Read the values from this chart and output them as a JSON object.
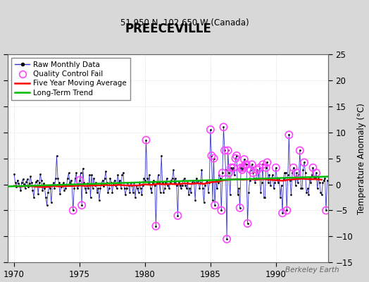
{
  "title": "PREECEVILLE",
  "subtitle": "51.950 N, 102.650 W (Canada)",
  "ylabel": "Temperature Anomaly (°C)",
  "watermark": "Berkeley Earth",
  "xlim": [
    1969.5,
    1994.0
  ],
  "ylim": [
    -15,
    25
  ],
  "yticks": [
    -15,
    -10,
    -5,
    0,
    5,
    10,
    15,
    20,
    25
  ],
  "xticks": [
    1970,
    1975,
    1980,
    1985,
    1990
  ],
  "bg_color": "#d8d8d8",
  "plot_bg_color": "#ffffff",
  "raw_color": "#3333cc",
  "raw_marker_color": "#000000",
  "qc_color": "#ff44ff",
  "moving_avg_color": "#ff0000",
  "trend_color": "#00bb00",
  "raw_data": [
    [
      1970.0,
      2.0
    ],
    [
      1970.083,
      0.3
    ],
    [
      1970.167,
      -0.5
    ],
    [
      1970.25,
      0.8
    ],
    [
      1970.333,
      0.2
    ],
    [
      1970.417,
      -0.3
    ],
    [
      1970.5,
      -1.2
    ],
    [
      1970.583,
      0.4
    ],
    [
      1970.667,
      1.0
    ],
    [
      1970.75,
      0.1
    ],
    [
      1970.833,
      -0.8
    ],
    [
      1970.917,
      0.5
    ],
    [
      1971.0,
      1.0
    ],
    [
      1971.083,
      -0.5
    ],
    [
      1971.167,
      0.2
    ],
    [
      1971.25,
      1.5
    ],
    [
      1971.333,
      0.3
    ],
    [
      1971.417,
      -1.2
    ],
    [
      1971.5,
      -2.5
    ],
    [
      1971.583,
      -0.2
    ],
    [
      1971.667,
      0.5
    ],
    [
      1971.75,
      0.8
    ],
    [
      1971.833,
      -1.8
    ],
    [
      1971.917,
      0.3
    ],
    [
      1972.0,
      2.0
    ],
    [
      1972.083,
      0.8
    ],
    [
      1972.167,
      -1.2
    ],
    [
      1972.25,
      0.2
    ],
    [
      1972.333,
      -0.8
    ],
    [
      1972.417,
      -2.5
    ],
    [
      1972.5,
      -4.0
    ],
    [
      1972.583,
      -1.5
    ],
    [
      1972.667,
      -0.3
    ],
    [
      1972.75,
      -0.8
    ],
    [
      1972.833,
      -3.5
    ],
    [
      1972.917,
      -0.2
    ],
    [
      1973.0,
      0.3
    ],
    [
      1973.083,
      -0.8
    ],
    [
      1973.167,
      1.2
    ],
    [
      1973.25,
      5.5
    ],
    [
      1973.333,
      1.2
    ],
    [
      1973.417,
      0.3
    ],
    [
      1973.5,
      -1.8
    ],
    [
      1973.583,
      -0.5
    ],
    [
      1973.667,
      -0.2
    ],
    [
      1973.75,
      0.3
    ],
    [
      1973.833,
      -1.2
    ],
    [
      1973.917,
      -0.8
    ],
    [
      1974.0,
      -0.2
    ],
    [
      1974.083,
      1.2
    ],
    [
      1974.167,
      2.2
    ],
    [
      1974.25,
      0.3
    ],
    [
      1974.333,
      0.8
    ],
    [
      1974.417,
      -0.2
    ],
    [
      1974.5,
      -5.0
    ],
    [
      1974.583,
      -0.8
    ],
    [
      1974.667,
      1.2
    ],
    [
      1974.75,
      2.2
    ],
    [
      1974.833,
      -0.8
    ],
    [
      1974.917,
      -0.2
    ],
    [
      1975.0,
      0.8
    ],
    [
      1975.083,
      2.2
    ],
    [
      1975.167,
      -4.0
    ],
    [
      1975.25,
      3.0
    ],
    [
      1975.333,
      0.3
    ],
    [
      1975.417,
      -0.8
    ],
    [
      1975.5,
      -1.5
    ],
    [
      1975.583,
      0.2
    ],
    [
      1975.667,
      -0.8
    ],
    [
      1975.75,
      1.8
    ],
    [
      1975.833,
      -2.5
    ],
    [
      1975.917,
      1.8
    ],
    [
      1976.0,
      -0.8
    ],
    [
      1976.083,
      1.2
    ],
    [
      1976.167,
      -0.2
    ],
    [
      1976.25,
      0.3
    ],
    [
      1976.333,
      -1.5
    ],
    [
      1976.417,
      -0.8
    ],
    [
      1976.5,
      -3.0
    ],
    [
      1976.583,
      -0.8
    ],
    [
      1976.667,
      0.2
    ],
    [
      1976.75,
      0.8
    ],
    [
      1976.833,
      -0.3
    ],
    [
      1976.917,
      1.2
    ],
    [
      1977.0,
      2.5
    ],
    [
      1977.083,
      0.3
    ],
    [
      1977.167,
      -1.5
    ],
    [
      1977.25,
      -0.8
    ],
    [
      1977.333,
      1.2
    ],
    [
      1977.417,
      0.3
    ],
    [
      1977.5,
      -1.5
    ],
    [
      1977.583,
      0.2
    ],
    [
      1977.667,
      0.8
    ],
    [
      1977.75,
      -0.2
    ],
    [
      1977.833,
      -0.8
    ],
    [
      1977.917,
      1.8
    ],
    [
      1978.0,
      0.3
    ],
    [
      1978.083,
      0.8
    ],
    [
      1978.167,
      -0.8
    ],
    [
      1978.25,
      1.8
    ],
    [
      1978.333,
      2.2
    ],
    [
      1978.417,
      -0.8
    ],
    [
      1978.5,
      -2.0
    ],
    [
      1978.583,
      -0.8
    ],
    [
      1978.667,
      0.3
    ],
    [
      1978.75,
      -0.2
    ],
    [
      1978.833,
      -1.5
    ],
    [
      1978.917,
      0.3
    ],
    [
      1979.0,
      -0.2
    ],
    [
      1979.083,
      -1.5
    ],
    [
      1979.167,
      0.3
    ],
    [
      1979.25,
      -2.5
    ],
    [
      1979.333,
      -0.2
    ],
    [
      1979.417,
      -0.8
    ],
    [
      1979.5,
      -1.5
    ],
    [
      1979.583,
      0.3
    ],
    [
      1979.667,
      -0.8
    ],
    [
      1979.75,
      -2.0
    ],
    [
      1979.833,
      -0.2
    ],
    [
      1979.917,
      1.2
    ],
    [
      1980.0,
      0.8
    ],
    [
      1980.083,
      8.5
    ],
    [
      1980.167,
      1.2
    ],
    [
      1980.25,
      0.3
    ],
    [
      1980.333,
      1.8
    ],
    [
      1980.417,
      -0.8
    ],
    [
      1980.5,
      -1.5
    ],
    [
      1980.583,
      0.3
    ],
    [
      1980.667,
      0.8
    ],
    [
      1980.75,
      -0.2
    ],
    [
      1980.833,
      -8.0
    ],
    [
      1980.917,
      0.3
    ],
    [
      1981.0,
      1.8
    ],
    [
      1981.083,
      0.3
    ],
    [
      1981.167,
      -1.5
    ],
    [
      1981.25,
      5.5
    ],
    [
      1981.333,
      0.3
    ],
    [
      1981.417,
      -1.5
    ],
    [
      1981.5,
      -0.8
    ],
    [
      1981.583,
      0.3
    ],
    [
      1981.667,
      1.2
    ],
    [
      1981.75,
      -0.2
    ],
    [
      1981.833,
      -0.8
    ],
    [
      1981.917,
      0.3
    ],
    [
      1982.0,
      0.8
    ],
    [
      1982.083,
      1.2
    ],
    [
      1982.167,
      2.8
    ],
    [
      1982.25,
      0.3
    ],
    [
      1982.333,
      1.2
    ],
    [
      1982.417,
      -0.2
    ],
    [
      1982.5,
      -6.0
    ],
    [
      1982.583,
      0.3
    ],
    [
      1982.667,
      -0.2
    ],
    [
      1982.75,
      -0.8
    ],
    [
      1982.833,
      -0.2
    ],
    [
      1982.917,
      0.8
    ],
    [
      1983.0,
      1.2
    ],
    [
      1983.083,
      -0.2
    ],
    [
      1983.167,
      -0.8
    ],
    [
      1983.25,
      0.3
    ],
    [
      1983.333,
      -2.0
    ],
    [
      1983.417,
      -0.8
    ],
    [
      1983.5,
      -1.5
    ],
    [
      1983.583,
      0.3
    ],
    [
      1983.667,
      0.8
    ],
    [
      1983.75,
      0.3
    ],
    [
      1983.833,
      -3.0
    ],
    [
      1983.917,
      1.2
    ],
    [
      1984.0,
      0.3
    ],
    [
      1984.083,
      0.8
    ],
    [
      1984.167,
      -0.8
    ],
    [
      1984.25,
      0.3
    ],
    [
      1984.333,
      2.8
    ],
    [
      1984.417,
      -0.8
    ],
    [
      1984.5,
      -3.5
    ],
    [
      1984.583,
      -0.2
    ],
    [
      1984.667,
      0.3
    ],
    [
      1984.75,
      0.8
    ],
    [
      1984.833,
      -1.5
    ],
    [
      1984.917,
      0.3
    ],
    [
      1985.0,
      10.5
    ],
    [
      1985.083,
      5.5
    ],
    [
      1985.167,
      -3.0
    ],
    [
      1985.25,
      5.0
    ],
    [
      1985.333,
      -4.0
    ],
    [
      1985.417,
      0.8
    ],
    [
      1985.5,
      -0.8
    ],
    [
      1985.583,
      0.3
    ],
    [
      1985.667,
      1.8
    ],
    [
      1985.75,
      1.2
    ],
    [
      1985.833,
      -5.0
    ],
    [
      1985.917,
      2.2
    ],
    [
      1986.0,
      11.0
    ],
    [
      1986.083,
      6.5
    ],
    [
      1986.167,
      2.8
    ],
    [
      1986.25,
      -10.5
    ],
    [
      1986.333,
      6.5
    ],
    [
      1986.417,
      2.2
    ],
    [
      1986.5,
      -2.0
    ],
    [
      1986.583,
      3.2
    ],
    [
      1986.667,
      2.8
    ],
    [
      1986.75,
      3.2
    ],
    [
      1986.833,
      1.8
    ],
    [
      1986.917,
      5.0
    ],
    [
      1987.0,
      5.5
    ],
    [
      1987.083,
      -2.0
    ],
    [
      1987.167,
      -0.8
    ],
    [
      1987.25,
      -4.5
    ],
    [
      1987.333,
      3.2
    ],
    [
      1987.417,
      2.8
    ],
    [
      1987.5,
      3.2
    ],
    [
      1987.583,
      4.8
    ],
    [
      1987.667,
      3.8
    ],
    [
      1987.75,
      3.8
    ],
    [
      1987.833,
      -7.5
    ],
    [
      1987.917,
      -1.5
    ],
    [
      1988.0,
      0.8
    ],
    [
      1988.083,
      2.8
    ],
    [
      1988.167,
      3.8
    ],
    [
      1988.25,
      2.2
    ],
    [
      1988.333,
      1.2
    ],
    [
      1988.417,
      0.3
    ],
    [
      1988.5,
      1.2
    ],
    [
      1988.583,
      2.8
    ],
    [
      1988.667,
      1.2
    ],
    [
      1988.75,
      3.2
    ],
    [
      1988.833,
      -1.5
    ],
    [
      1988.917,
      0.3
    ],
    [
      1989.0,
      3.8
    ],
    [
      1989.083,
      -2.5
    ],
    [
      1989.167,
      -2.5
    ],
    [
      1989.25,
      3.2
    ],
    [
      1989.333,
      4.2
    ],
    [
      1989.417,
      0.3
    ],
    [
      1989.5,
      1.8
    ],
    [
      1989.583,
      -0.2
    ],
    [
      1989.667,
      1.2
    ],
    [
      1989.75,
      1.8
    ],
    [
      1989.833,
      -0.8
    ],
    [
      1989.917,
      0.3
    ],
    [
      1990.0,
      3.2
    ],
    [
      1990.083,
      1.2
    ],
    [
      1990.167,
      0.3
    ],
    [
      1990.25,
      1.2
    ],
    [
      1990.333,
      -2.5
    ],
    [
      1990.417,
      -0.2
    ],
    [
      1990.5,
      -5.5
    ],
    [
      1990.583,
      1.2
    ],
    [
      1990.667,
      2.2
    ],
    [
      1990.75,
      2.2
    ],
    [
      1990.833,
      -5.0
    ],
    [
      1990.917,
      1.8
    ],
    [
      1991.0,
      9.5
    ],
    [
      1991.083,
      0.8
    ],
    [
      1991.167,
      -2.0
    ],
    [
      1991.25,
      2.2
    ],
    [
      1991.333,
      3.2
    ],
    [
      1991.417,
      2.8
    ],
    [
      1991.5,
      -0.2
    ],
    [
      1991.583,
      2.2
    ],
    [
      1991.667,
      0.3
    ],
    [
      1991.75,
      1.8
    ],
    [
      1991.833,
      6.5
    ],
    [
      1991.917,
      -0.8
    ],
    [
      1992.0,
      -0.8
    ],
    [
      1992.083,
      2.8
    ],
    [
      1992.167,
      4.2
    ],
    [
      1992.25,
      2.2
    ],
    [
      1992.333,
      -1.5
    ],
    [
      1992.417,
      -0.8
    ],
    [
      1992.5,
      -2.0
    ],
    [
      1992.583,
      1.2
    ],
    [
      1992.667,
      0.3
    ],
    [
      1992.75,
      1.8
    ],
    [
      1992.833,
      3.2
    ],
    [
      1992.917,
      1.2
    ],
    [
      1993.0,
      1.2
    ],
    [
      1993.083,
      2.2
    ],
    [
      1993.167,
      -0.8
    ],
    [
      1993.25,
      1.2
    ],
    [
      1993.333,
      0.3
    ],
    [
      1993.417,
      -1.5
    ],
    [
      1993.5,
      -2.0
    ],
    [
      1993.583,
      0.3
    ],
    [
      1993.667,
      0.8
    ],
    [
      1993.75,
      1.2
    ],
    [
      1993.833,
      -5.0
    ],
    [
      1993.917,
      0.8
    ]
  ],
  "qc_fail_points": [
    [
      1974.5,
      -5.0
    ],
    [
      1975.0,
      0.8
    ],
    [
      1975.167,
      -4.0
    ],
    [
      1980.083,
      8.5
    ],
    [
      1980.833,
      -8.0
    ],
    [
      1982.5,
      -6.0
    ],
    [
      1985.0,
      10.5
    ],
    [
      1985.083,
      5.5
    ],
    [
      1985.25,
      5.0
    ],
    [
      1985.333,
      -4.0
    ],
    [
      1985.833,
      -5.0
    ],
    [
      1985.917,
      2.2
    ],
    [
      1986.0,
      11.0
    ],
    [
      1986.083,
      6.5
    ],
    [
      1986.25,
      -10.5
    ],
    [
      1986.333,
      6.5
    ],
    [
      1986.417,
      2.2
    ],
    [
      1986.583,
      3.2
    ],
    [
      1986.75,
      3.2
    ],
    [
      1986.917,
      5.0
    ],
    [
      1987.0,
      5.5
    ],
    [
      1987.25,
      -4.5
    ],
    [
      1987.333,
      3.2
    ],
    [
      1987.417,
      2.8
    ],
    [
      1987.5,
      3.2
    ],
    [
      1987.583,
      4.8
    ],
    [
      1987.667,
      3.8
    ],
    [
      1987.75,
      3.8
    ],
    [
      1987.833,
      -7.5
    ],
    [
      1988.083,
      2.8
    ],
    [
      1988.167,
      3.8
    ],
    [
      1988.25,
      2.2
    ],
    [
      1988.583,
      2.8
    ],
    [
      1988.75,
      3.2
    ],
    [
      1989.0,
      3.8
    ],
    [
      1989.25,
      3.2
    ],
    [
      1989.333,
      4.2
    ],
    [
      1990.0,
      3.2
    ],
    [
      1990.5,
      -5.5
    ],
    [
      1990.833,
      -5.0
    ],
    [
      1991.0,
      9.5
    ],
    [
      1991.333,
      3.2
    ],
    [
      1991.583,
      2.2
    ],
    [
      1991.833,
      6.5
    ],
    [
      1992.167,
      4.2
    ],
    [
      1992.833,
      3.2
    ],
    [
      1993.083,
      2.2
    ],
    [
      1993.833,
      -5.0
    ]
  ],
  "moving_avg_x": [
    1970.0,
    1970.5,
    1971.0,
    1971.5,
    1972.0,
    1972.5,
    1973.0,
    1973.5,
    1974.0,
    1974.5,
    1975.0,
    1975.5,
    1976.0,
    1976.5,
    1977.0,
    1977.5,
    1978.0,
    1978.5,
    1979.0,
    1979.5,
    1980.0,
    1980.5,
    1981.0,
    1981.5,
    1982.0,
    1982.5,
    1983.0,
    1983.5,
    1984.0,
    1984.5,
    1985.0,
    1985.5,
    1986.0,
    1986.5,
    1987.0,
    1987.5,
    1988.0,
    1988.5,
    1989.0,
    1989.5,
    1990.0,
    1990.5,
    1991.0,
    1991.5,
    1992.0,
    1992.5,
    1993.0,
    1993.5
  ],
  "moving_avg_y": [
    -0.3,
    -0.4,
    -0.3,
    -0.4,
    -0.5,
    -0.5,
    -0.3,
    -0.4,
    -0.3,
    -0.3,
    -0.2,
    -0.3,
    -0.2,
    -0.2,
    -0.1,
    -0.2,
    -0.1,
    -0.2,
    -0.2,
    -0.2,
    0.0,
    -0.1,
    0.1,
    0.0,
    0.1,
    0.0,
    0.2,
    0.1,
    0.2,
    0.1,
    0.4,
    0.5,
    0.8,
    0.9,
    1.0,
    0.9,
    1.0,
    0.9,
    1.0,
    0.9,
    0.8,
    0.7,
    0.9,
    1.0,
    1.1,
    1.0,
    1.0,
    0.9
  ],
  "trend_x": [
    1969.5,
    1994.0
  ],
  "trend_y": [
    -0.4,
    1.5
  ]
}
